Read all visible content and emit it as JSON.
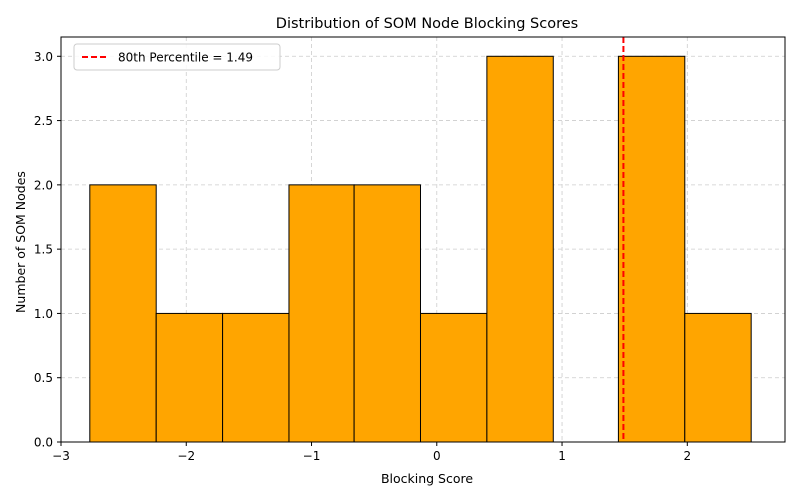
{
  "chart_data": {
    "type": "bar",
    "title": "Distribution of SOM Node Blocking Scores",
    "xlabel": "Blocking Score",
    "ylabel": "Number of SOM Nodes",
    "bins": [
      {
        "start": -2.77,
        "end": -2.24,
        "count": 2
      },
      {
        "start": -2.24,
        "end": -1.71,
        "count": 1
      },
      {
        "start": -1.71,
        "end": -1.18,
        "count": 1
      },
      {
        "start": -1.18,
        "end": -0.66,
        "count": 2
      },
      {
        "start": -0.66,
        "end": -0.13,
        "count": 2
      },
      {
        "start": -0.13,
        "end": 0.4,
        "count": 1
      },
      {
        "start": 0.4,
        "end": 0.93,
        "count": 3
      },
      {
        "start": 0.93,
        "end": 1.45,
        "count": 0
      },
      {
        "start": 1.45,
        "end": 1.98,
        "count": 3
      },
      {
        "start": 1.98,
        "end": 2.51,
        "count": 1
      }
    ],
    "xlim": [
      -3.0,
      2.78
    ],
    "ylim": [
      0,
      3.15
    ],
    "xticks": [
      -3,
      -2,
      -1,
      0,
      1,
      2
    ],
    "xtick_labels": [
      "−3",
      "−2",
      "−1",
      "0",
      "1",
      "2"
    ],
    "yticks": [
      0.0,
      0.5,
      1.0,
      1.5,
      2.0,
      2.5,
      3.0
    ],
    "ytick_labels": [
      "0.0",
      "0.5",
      "1.0",
      "1.5",
      "2.0",
      "2.5",
      "3.0"
    ],
    "grid": true,
    "bar_color": "#ffa500",
    "bar_edge_color": "#000000",
    "percentile_line": {
      "value": 1.49,
      "label": "80th Percentile = 1.49",
      "color": "#ff0000"
    },
    "legend_position": "upper-left"
  }
}
